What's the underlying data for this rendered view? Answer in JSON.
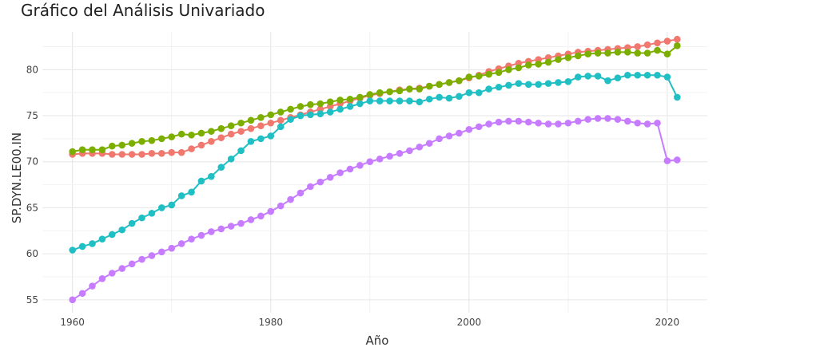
{
  "chart_data": {
    "type": "line",
    "title": "Gráfico del Análisis Univariado",
    "xlabel": "Año",
    "ylabel": "SP.DYN.LE00.IN",
    "xlim": [
      1957.1,
      1962.9
    ],
    "ylim": [
      53.6,
      84.1
    ],
    "x_ticks": [
      1960,
      1980,
      2000,
      2020
    ],
    "y_ticks": [
      55,
      60,
      65,
      70,
      75,
      80
    ],
    "grid": true,
    "legend": "none",
    "x": [
      1960,
      1961,
      1962,
      1963,
      1964,
      1965,
      1966,
      1967,
      1968,
      1969,
      1970,
      1971,
      1972,
      1973,
      1974,
      1975,
      1976,
      1977,
      1978,
      1979,
      1980,
      1981,
      1982,
      1983,
      1984,
      1985,
      1986,
      1987,
      1988,
      1989,
      1990,
      1991,
      1992,
      1993,
      1994,
      1995,
      1996,
      1997,
      1998,
      1999,
      2000,
      2001,
      2002,
      2003,
      2004,
      2005,
      2006,
      2007,
      2008,
      2009,
      2010,
      2011,
      2012,
      2013,
      2014,
      2015,
      2016,
      2017,
      2018,
      2019,
      2020,
      2021
    ],
    "series": [
      {
        "color": "#F0786E",
        "values": [
          70.8,
          70.9,
          70.9,
          70.9,
          70.8,
          70.8,
          70.8,
          70.8,
          70.9,
          70.9,
          71.0,
          71.0,
          71.4,
          71.8,
          72.2,
          72.6,
          73.0,
          73.3,
          73.6,
          73.9,
          74.2,
          74.5,
          74.8,
          75.1,
          75.4,
          75.7,
          76.0,
          76.3,
          76.6,
          76.9,
          77.2,
          77.4,
          77.6,
          77.8,
          77.9,
          78.0,
          78.2,
          78.4,
          78.6,
          78.8,
          79.1,
          79.4,
          79.8,
          80.1,
          80.4,
          80.7,
          80.9,
          81.1,
          81.3,
          81.5,
          81.7,
          81.9,
          82.0,
          82.1,
          82.2,
          82.3,
          82.4,
          82.5,
          82.7,
          82.9,
          83.1,
          83.3
        ]
      },
      {
        "color": "#7CAE00",
        "values": [
          71.1,
          71.3,
          71.3,
          71.3,
          71.7,
          71.8,
          72.0,
          72.2,
          72.3,
          72.5,
          72.7,
          73.0,
          72.9,
          73.1,
          73.3,
          73.6,
          73.9,
          74.2,
          74.5,
          74.8,
          75.1,
          75.4,
          75.7,
          76.0,
          76.2,
          76.3,
          76.5,
          76.7,
          76.8,
          77.0,
          77.3,
          77.5,
          77.6,
          77.7,
          77.9,
          77.9,
          78.2,
          78.4,
          78.6,
          78.8,
          79.2,
          79.3,
          79.5,
          79.7,
          80.0,
          80.2,
          80.5,
          80.6,
          80.8,
          81.1,
          81.3,
          81.5,
          81.7,
          81.8,
          81.8,
          81.9,
          81.9,
          81.8,
          81.8,
          82.1,
          81.7,
          82.6
        ]
      },
      {
        "color": "#1FBFC4",
        "values": [
          60.4,
          60.8,
          61.1,
          61.6,
          62.1,
          62.6,
          63.3,
          63.9,
          64.4,
          65.0,
          65.3,
          66.3,
          66.7,
          67.9,
          68.4,
          69.4,
          70.3,
          71.2,
          72.2,
          72.5,
          72.8,
          73.8,
          74.6,
          75.0,
          75.1,
          75.2,
          75.4,
          75.7,
          76.0,
          76.3,
          76.6,
          76.6,
          76.6,
          76.6,
          76.6,
          76.5,
          76.8,
          77.0,
          76.9,
          77.1,
          77.5,
          77.5,
          77.9,
          78.1,
          78.3,
          78.5,
          78.4,
          78.4,
          78.5,
          78.6,
          78.7,
          79.2,
          79.3,
          79.3,
          78.8,
          79.1,
          79.4,
          79.4,
          79.4,
          79.4,
          79.2,
          77.0
        ]
      },
      {
        "color": "#C77CFF",
        "values": [
          55.0,
          55.7,
          56.5,
          57.3,
          57.9,
          58.4,
          58.9,
          59.4,
          59.8,
          60.2,
          60.6,
          61.1,
          61.6,
          62.0,
          62.4,
          62.7,
          63.0,
          63.3,
          63.7,
          64.1,
          64.6,
          65.2,
          65.9,
          66.6,
          67.3,
          67.8,
          68.3,
          68.8,
          69.2,
          69.6,
          70.0,
          70.3,
          70.6,
          70.9,
          71.2,
          71.6,
          72.0,
          72.5,
          72.8,
          73.1,
          73.5,
          73.8,
          74.1,
          74.3,
          74.4,
          74.4,
          74.3,
          74.2,
          74.1,
          74.1,
          74.2,
          74.4,
          74.6,
          74.7,
          74.7,
          74.6,
          74.4,
          74.2,
          74.1,
          74.2,
          70.1,
          70.2
        ]
      }
    ]
  }
}
